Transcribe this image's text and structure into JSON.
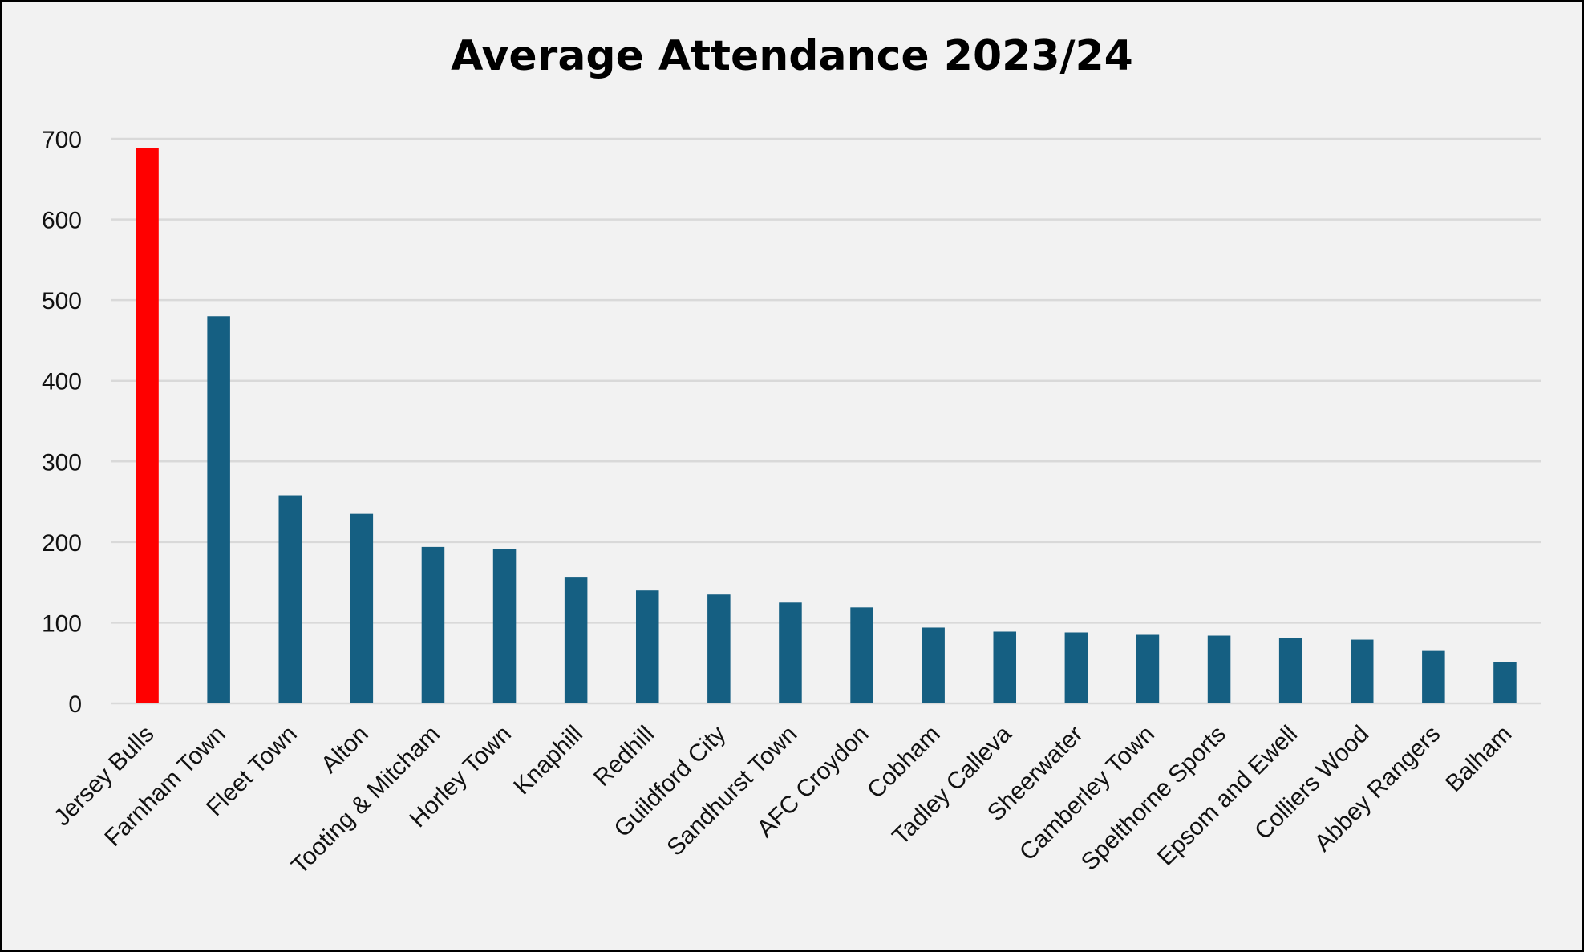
{
  "chart_data": {
    "type": "bar",
    "title": "Average Attendance 2023/24",
    "xlabel": "",
    "ylabel": "",
    "ylim": [
      0,
      700
    ],
    "yticks": [
      0,
      100,
      200,
      300,
      400,
      500,
      600,
      700
    ],
    "grid": true,
    "categories": [
      "Jersey Bulls",
      "Farnham Town",
      "Fleet Town",
      "Alton",
      "Tooting & Mitcham",
      "Horley Town",
      "Knaphill",
      "Redhill",
      "Guildford City",
      "Sandhurst Town",
      "AFC Croydon",
      "Cobham",
      "Tadley Calleva",
      "Sheerwater",
      "Camberley Town",
      "Spelthorne Sports",
      "Epsom and Ewell",
      "Colliers Wood",
      "Abbey Rangers",
      "Balham"
    ],
    "values": [
      689,
      480,
      258,
      235,
      194,
      191,
      156,
      140,
      135,
      125,
      119,
      94,
      89,
      88,
      85,
      84,
      81,
      79,
      65,
      51
    ],
    "colors": {
      "highlight": "#ff0000",
      "default": "#155f82",
      "grid": "#d9d9d9"
    },
    "highlight_category": "Jersey Bulls"
  }
}
